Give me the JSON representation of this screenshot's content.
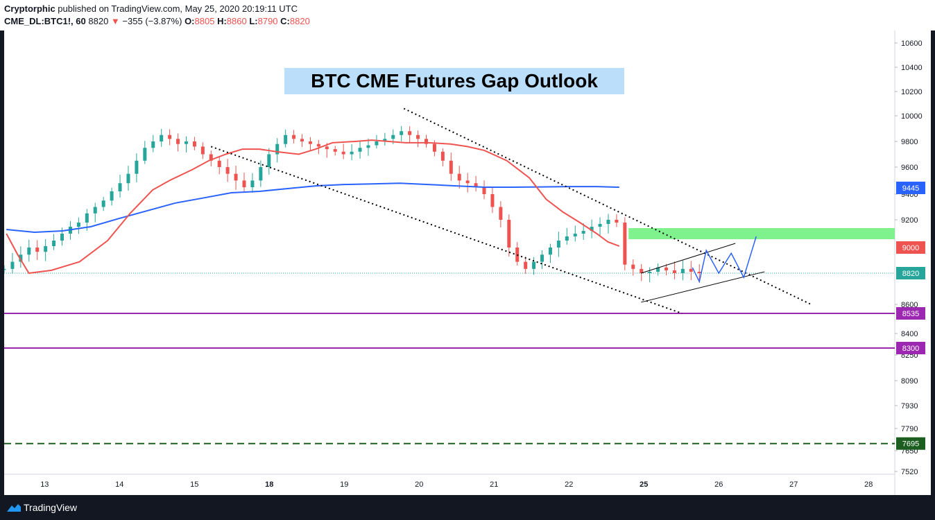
{
  "header": {
    "author": "Cryptorphic",
    "published_text": "published on TradingView.com, May 25, 2020 20:19:11 UTC",
    "symbol": "CME_DL:BTC1!, 60",
    "last": "8820",
    "change_arrow": "▼",
    "change": "−355 (−3.87%)",
    "o_label": "O:",
    "o_value": "8805",
    "h_label": "H:",
    "h_value": "8860",
    "l_label": "L:",
    "l_value": "8790",
    "c_label": "C:",
    "c_value": "8820"
  },
  "footer": {
    "brand": "TradingView"
  },
  "colors": {
    "ma_fast": "#ef5350",
    "ma_slow": "#2962ff",
    "up": "#26a69a",
    "down": "#ef5350",
    "gap_zone": "#69f07a",
    "support": "#9c27b0",
    "target": "#1b5e20",
    "title_bg": "#bbdefb"
  },
  "chart_data": {
    "type": "candlestick",
    "title": "BTC CME Futures Gap Outlook",
    "x_ticks": [
      "13",
      "14",
      "15",
      "18",
      "19",
      "20",
      "21",
      "22",
      "25",
      "26",
      "27",
      "28"
    ],
    "x_ticks_bold": [
      "18",
      "25"
    ],
    "y_ticks": [
      10600,
      10400,
      10200,
      10000,
      9800,
      9600,
      9400,
      9200,
      8600,
      8400,
      8250,
      8090,
      7930,
      7790,
      7650,
      7520
    ],
    "price_labels": [
      {
        "value": 9445,
        "text": "9445",
        "color": "#2962ff"
      },
      {
        "value": 9000,
        "text": "9000",
        "color": "#ef5350"
      },
      {
        "value": 8820,
        "text": "8820",
        "color": "#26a69a"
      },
      {
        "value": 8535,
        "text": "8535",
        "color": "#9c27b0"
      },
      {
        "value": 8300,
        "text": "8300",
        "color": "#9c27b0"
      },
      {
        "value": 7695,
        "text": "7695",
        "color": "#1b5e20"
      }
    ],
    "horizontal_levels": [
      {
        "value": 8535,
        "style": "solid",
        "color": "#9c27b0"
      },
      {
        "value": 8300,
        "style": "solid",
        "color": "#9c27b0"
      },
      {
        "value": 7695,
        "style": "dashed",
        "color": "#1b5e20"
      }
    ],
    "gap_zone": {
      "from": 9060,
      "to": 9140,
      "x_start": 24.8
    },
    "last_price": 8820,
    "closes": [
      8850,
      8900,
      8950,
      9000,
      8970,
      9010,
      9050,
      9100,
      9150,
      9180,
      9250,
      9300,
      9350,
      9420,
      9480,
      9550,
      9650,
      9750,
      9800,
      9850,
      9820,
      9780,
      9800,
      9760,
      9700,
      9650,
      9600,
      9550,
      9500,
      9450,
      9500,
      9600,
      9700,
      9780,
      9850,
      9820,
      9800,
      9780,
      9760,
      9740,
      9720,
      9700,
      9720,
      9750,
      9770,
      9800,
      9820,
      9850,
      9880,
      9850,
      9820,
      9780,
      9720,
      9650,
      9550,
      9500,
      9480,
      9450,
      9400,
      9300,
      9200,
      9000,
      8900,
      8850,
      8900,
      8950,
      9000,
      9050,
      9080,
      9100,
      9120,
      9150,
      9170,
      9200,
      9180,
      8880,
      8850,
      8820,
      8830,
      8860,
      8840,
      8820,
      8850,
      8830,
      8820
    ],
    "close_days": 12.85,
    "ma_fast": [
      [
        12.5,
        9100
      ],
      [
        12.7,
        8950
      ],
      [
        12.9,
        8820
      ],
      [
        13.3,
        8840
      ],
      [
        13.8,
        8900
      ],
      [
        14.3,
        9050
      ],
      [
        14.7,
        9250
      ],
      [
        15.1,
        9430
      ],
      [
        15.4,
        9500
      ],
      [
        15.8,
        9580
      ],
      [
        16.1,
        9650
      ],
      [
        16.4,
        9700
      ],
      [
        16.7,
        9740
      ],
      [
        17.0,
        9740
      ],
      [
        17.3,
        9720
      ],
      [
        17.7,
        9700
      ],
      [
        18.0,
        9740
      ],
      [
        18.3,
        9790
      ],
      [
        18.7,
        9800
      ],
      [
        19.0,
        9810
      ],
      [
        19.3,
        9800
      ],
      [
        19.6,
        9790
      ],
      [
        20.0,
        9790
      ],
      [
        20.4,
        9780
      ],
      [
        20.7,
        9760
      ],
      [
        21.0,
        9730
      ],
      [
        21.4,
        9650
      ],
      [
        21.8,
        9520
      ],
      [
        22.1,
        9360
      ],
      [
        22.4,
        9260
      ],
      [
        22.7,
        9180
      ],
      [
        23.0,
        9100
      ],
      [
        23.2,
        9040
      ],
      [
        23.4,
        9010
      ]
    ],
    "ma_slow": [
      [
        12.5,
        9130
      ],
      [
        13.0,
        9110
      ],
      [
        13.5,
        9120
      ],
      [
        14.0,
        9150
      ],
      [
        14.5,
        9210
      ],
      [
        15.0,
        9270
      ],
      [
        15.5,
        9330
      ],
      [
        16.0,
        9370
      ],
      [
        16.5,
        9410
      ],
      [
        17.0,
        9420
      ],
      [
        17.5,
        9440
      ],
      [
        18.0,
        9460
      ],
      [
        18.5,
        9470
      ],
      [
        19.0,
        9475
      ],
      [
        19.5,
        9480
      ],
      [
        20.0,
        9470
      ],
      [
        20.5,
        9460
      ],
      [
        21.0,
        9450
      ],
      [
        21.5,
        9450
      ],
      [
        22.0,
        9452
      ],
      [
        22.5,
        9455
      ],
      [
        23.0,
        9455
      ],
      [
        23.4,
        9450
      ]
    ]
  }
}
